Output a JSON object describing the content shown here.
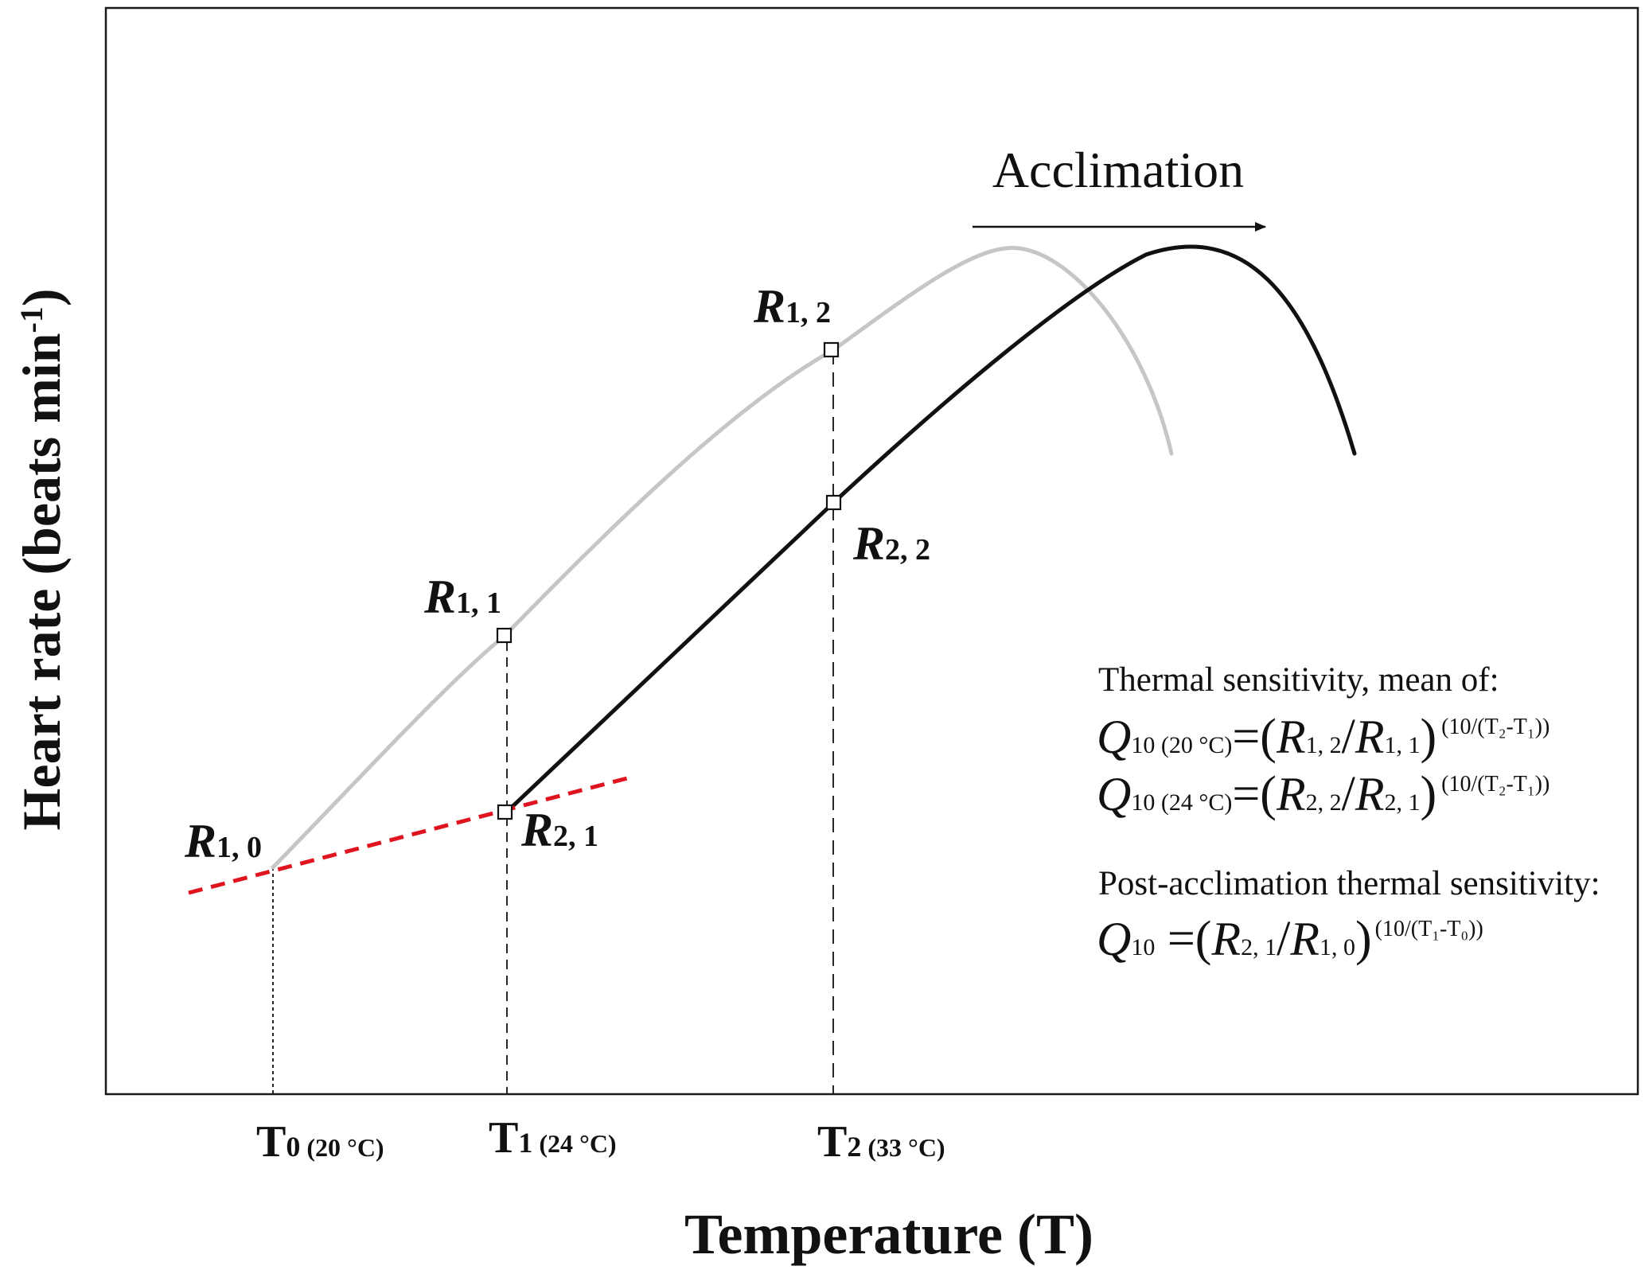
{
  "axes": {
    "ylabel": "Heart rate (beats min",
    "ylabel_superscript": "-1",
    "ylabel_close": ")",
    "xlabel": "Temperature (T)"
  },
  "x_ticks": [
    {
      "main": "T",
      "sub": "0",
      "note": " (20 °C)"
    },
    {
      "main": "T",
      "sub": "1",
      "note": " (24 °C)"
    },
    {
      "main": "T",
      "sub": "2",
      "note": " (33 °C)"
    }
  ],
  "points": [
    {
      "main": "R",
      "sub": "1, 0"
    },
    {
      "main": "R",
      "sub": "1, 1"
    },
    {
      "main": "R",
      "sub": "1, 2"
    },
    {
      "main": "R",
      "sub": "2, 1"
    },
    {
      "main": "R",
      "sub": "2, 2"
    }
  ],
  "annotation": {
    "arrow_label": "Acclimation"
  },
  "equations": {
    "heading1": "Thermal sensitivity, mean of:",
    "eq1": {
      "q": "Q",
      "q_sub": "10 (20 °C)",
      "eqsign": "=(",
      "r1": "R",
      "r1_sub": "1, 2",
      "slash": "/",
      "r2": "R",
      "r2_sub": "1, 1",
      "close": ")",
      "exp": "(10/(T₂-T₁))"
    },
    "eq2": {
      "q": "Q",
      "q_sub": "10 (24 °C)",
      "eqsign": "=(",
      "r1": "R",
      "r1_sub": "2, 2",
      "slash": "/",
      "r2": "R",
      "r2_sub": "2, 1",
      "close": ")",
      "exp": "(10/(T₂-T₁))"
    },
    "heading2": "Post-acclimation thermal sensitivity:",
    "eq3": {
      "q": "Q",
      "q_sub": "10",
      "eqsign": " =(",
      "r1": "R",
      "r1_sub": "2, 1",
      "slash": "/",
      "r2": "R",
      "r2_sub": "1, 0",
      "close": ")",
      "exp": "(10/(T₁-T₀))"
    }
  },
  "colors": {
    "pre_acclimation_curve": "#c6c6c6",
    "post_acclimation_curve": "#111111",
    "acclimation_trend": "#e0141e",
    "frame": "#1a1a1a"
  }
}
